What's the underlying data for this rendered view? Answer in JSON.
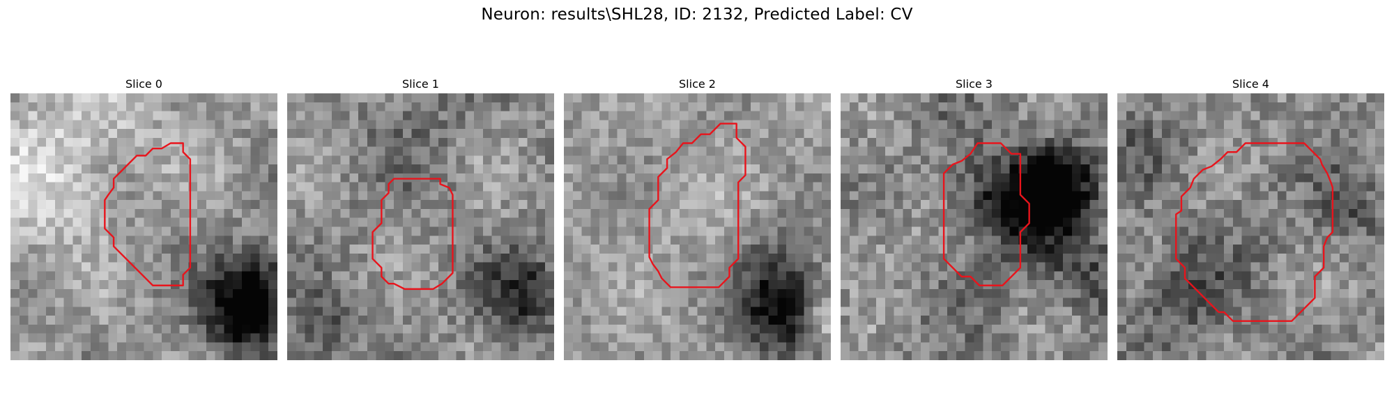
{
  "figure": {
    "title": "Neuron: results\\SHL28, ID: 2132, Predicted Label: CV",
    "contour_color": "#e8141c"
  },
  "panels": [
    {
      "title": "Slice 0",
      "contour": [
        [
          18,
          5.6
        ],
        [
          19.4,
          5.6
        ],
        [
          19.4,
          6.6
        ],
        [
          20.2,
          7.4
        ],
        [
          20.2,
          19.6
        ],
        [
          19.4,
          20.4
        ],
        [
          19.4,
          21.6
        ],
        [
          16,
          21.6
        ],
        [
          15.2,
          20.8
        ],
        [
          14.8,
          20.4
        ],
        [
          14,
          19.6
        ],
        [
          13.2,
          18.8
        ],
        [
          12.4,
          18
        ],
        [
          11.6,
          17.2
        ],
        [
          11.6,
          16.2
        ],
        [
          10.6,
          15.2
        ],
        [
          10.6,
          12
        ],
        [
          11,
          11.4
        ],
        [
          11.6,
          10.6
        ],
        [
          11.6,
          9.6
        ],
        [
          12.4,
          8.8
        ],
        [
          13.2,
          8
        ],
        [
          14.2,
          7
        ],
        [
          15.2,
          7
        ],
        [
          16,
          6.2
        ],
        [
          17,
          6.2
        ]
      ],
      "field": {
        "base": 0.58,
        "amp": 0.18,
        "noise": 0.28,
        "seed": 11,
        "blobs": [
          [
            7,
            4,
            8,
            0.18
          ],
          [
            3,
            12,
            5,
            0.14
          ],
          [
            27,
            22,
            3.5,
            -0.55
          ],
          [
            25.5,
            25,
            3,
            -0.35
          ],
          [
            14,
            14,
            5,
            -0.05
          ]
        ]
      }
    },
    {
      "title": "Slice 1",
      "contour": [
        [
          12,
          9.6
        ],
        [
          17.2,
          9.6
        ],
        [
          17.2,
          10.2
        ],
        [
          18.2,
          10.6
        ],
        [
          18.6,
          11.4
        ],
        [
          18.6,
          20.2
        ],
        [
          17.4,
          21.4
        ],
        [
          16.4,
          22
        ],
        [
          13.2,
          22
        ],
        [
          12,
          21.4
        ],
        [
          11.4,
          21.4
        ],
        [
          10.6,
          20.6
        ],
        [
          10.6,
          19.6
        ],
        [
          9.6,
          18.6
        ],
        [
          9.6,
          15.6
        ],
        [
          10.6,
          14.6
        ],
        [
          10.6,
          12
        ],
        [
          11.4,
          11.2
        ],
        [
          11.4,
          10.2
        ]
      ],
      "field": {
        "base": 0.56,
        "amp": 0.16,
        "noise": 0.3,
        "seed": 23,
        "blobs": [
          [
            16,
            5,
            6,
            -0.12
          ],
          [
            26,
            22,
            3.5,
            -0.4
          ],
          [
            3,
            26,
            3,
            -0.25
          ],
          [
            22,
            8,
            4,
            0.08
          ]
        ]
      }
    },
    {
      "title": "Slice 2",
      "contour": [
        [
          17.6,
          3.4
        ],
        [
          19.4,
          3.4
        ],
        [
          19.4,
          5
        ],
        [
          20.4,
          6
        ],
        [
          20.4,
          9.2
        ],
        [
          19.6,
          10
        ],
        [
          19.6,
          18.6
        ],
        [
          18.6,
          19.6
        ],
        [
          18.6,
          20.6
        ],
        [
          17.4,
          21.8
        ],
        [
          12,
          21.8
        ],
        [
          11,
          20.8
        ],
        [
          10.6,
          20
        ],
        [
          10,
          19.2
        ],
        [
          9.6,
          18.4
        ],
        [
          9.6,
          13
        ],
        [
          10.6,
          12
        ],
        [
          10.6,
          9.4
        ],
        [
          11.6,
          8.4
        ],
        [
          11.6,
          7.4
        ],
        [
          12.6,
          6.6
        ],
        [
          13.4,
          5.6
        ],
        [
          14.4,
          5.6
        ],
        [
          15.4,
          4.6
        ],
        [
          16.4,
          4.6
        ]
      ],
      "field": {
        "base": 0.6,
        "amp": 0.14,
        "noise": 0.26,
        "seed": 37,
        "blobs": [
          [
            24,
            24,
            3.5,
            -0.6
          ],
          [
            23,
            18,
            3,
            -0.2
          ],
          [
            29,
            25,
            2,
            0.3
          ],
          [
            15,
            15,
            6,
            0.04
          ]
        ]
      }
    },
    {
      "title": "Slice 3",
      "contour": [
        [
          17,
          5.6
        ],
        [
          18,
          5.6
        ],
        [
          19.2,
          6.8
        ],
        [
          20.2,
          6.8
        ],
        [
          20.2,
          11.4
        ],
        [
          21.2,
          12.4
        ],
        [
          21.2,
          14.6
        ],
        [
          20.2,
          15.6
        ],
        [
          20.2,
          19.6
        ],
        [
          19.2,
          20.6
        ],
        [
          18.2,
          21.6
        ],
        [
          15.6,
          21.6
        ],
        [
          14.6,
          20.6
        ],
        [
          13.6,
          20.6
        ],
        [
          12.6,
          19.6
        ],
        [
          11.6,
          18.6
        ],
        [
          11.6,
          9
        ],
        [
          12.6,
          8
        ],
        [
          13.6,
          7.6
        ],
        [
          14.6,
          6.8
        ],
        [
          15.4,
          5.6
        ]
      ],
      "field": {
        "base": 0.52,
        "amp": 0.2,
        "noise": 0.32,
        "seed": 51,
        "blobs": [
          [
            21.5,
            12,
            4,
            -0.5
          ],
          [
            24,
            9,
            3,
            -0.35
          ],
          [
            4,
            15,
            4,
            0.12
          ],
          [
            27,
            20,
            3,
            -0.2
          ],
          [
            15,
            12,
            3,
            -0.2
          ]
        ]
      }
    },
    {
      "title": "Slice 4",
      "contour": [
        [
          21,
          5.6
        ],
        [
          22.8,
          7.4
        ],
        [
          23,
          8
        ],
        [
          23.6,
          9
        ],
        [
          24,
          10
        ],
        [
          24.2,
          10.6
        ],
        [
          24.2,
          15.6
        ],
        [
          23.6,
          16.2
        ],
        [
          23.2,
          17.2
        ],
        [
          23.2,
          19.6
        ],
        [
          22.2,
          20.6
        ],
        [
          22.2,
          23
        ],
        [
          21.4,
          23.8
        ],
        [
          20.6,
          24.6
        ],
        [
          19.6,
          25.6
        ],
        [
          13,
          25.6
        ],
        [
          12,
          24.6
        ],
        [
          11.4,
          24.6
        ],
        [
          10.6,
          23.8
        ],
        [
          9.6,
          22.8
        ],
        [
          8.6,
          21.8
        ],
        [
          7.6,
          20.8
        ],
        [
          7.6,
          19.6
        ],
        [
          6.6,
          18.6
        ],
        [
          6.6,
          13.6
        ],
        [
          7.2,
          13.2
        ],
        [
          7.2,
          11.6
        ],
        [
          8.2,
          10.6
        ],
        [
          8.6,
          9.6
        ],
        [
          9.6,
          8.6
        ],
        [
          10.6,
          8.2
        ],
        [
          11.6,
          7.4
        ],
        [
          12.4,
          6.6
        ],
        [
          13.4,
          6.6
        ],
        [
          14.4,
          5.6
        ]
      ],
      "field": {
        "base": 0.55,
        "amp": 0.18,
        "noise": 0.32,
        "seed": 67,
        "blobs": [
          [
            7,
            22,
            4,
            -0.25
          ],
          [
            26,
            12,
            3,
            -0.2
          ],
          [
            2,
            6,
            3,
            -0.15
          ],
          [
            16,
            16,
            6,
            -0.04
          ]
        ]
      }
    }
  ]
}
